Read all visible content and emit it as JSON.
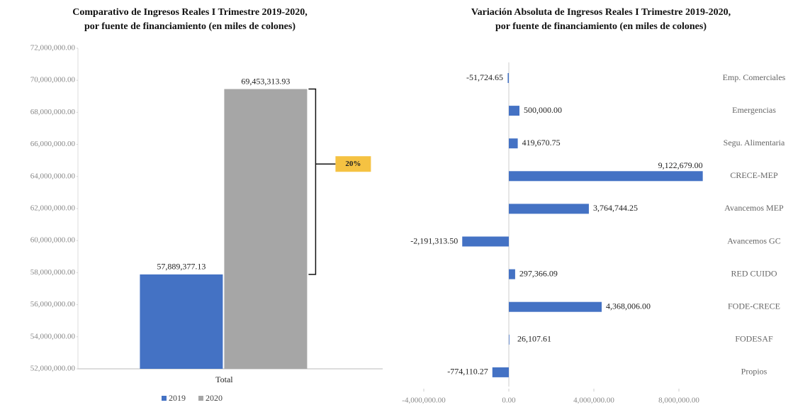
{
  "chart_data": [
    {
      "type": "bar",
      "title": [
        "Comparativo de Ingresos Reales I Trimestre 2019-2020,",
        "por fuente de financiamiento (en miles de  colones)"
      ],
      "categories": [
        "Total"
      ],
      "series": [
        {
          "name": "2019",
          "color": "#4472c4",
          "values": [
            57889377.13
          ],
          "value_labels": [
            "57,889,377.13"
          ]
        },
        {
          "name": "2020",
          "color": "#a6a6a6",
          "values": [
            69453313.93
          ],
          "value_labels": [
            "69,453,313.93"
          ]
        }
      ],
      "ylim": [
        52000000,
        72000000
      ],
      "yticks": [
        {
          "value": 52000000,
          "label": "52,000,000.00"
        },
        {
          "value": 54000000,
          "label": "54,000,000.00"
        },
        {
          "value": 56000000,
          "label": "56,000,000.00"
        },
        {
          "value": 58000000,
          "label": "58,000,000.00"
        },
        {
          "value": 60000000,
          "label": "60,000,000.00"
        },
        {
          "value": 62000000,
          "label": "62,000,000.00"
        },
        {
          "value": 64000000,
          "label": "64,000,000.00"
        },
        {
          "value": 66000000,
          "label": "66,000,000.00"
        },
        {
          "value": 68000000,
          "label": "68,000,000.00"
        },
        {
          "value": 70000000,
          "label": "70,000,000.00"
        },
        {
          "value": 72000000,
          "label": "72,000,000.00"
        }
      ],
      "annotation": "20%",
      "legend": "bottom"
    },
    {
      "type": "hbar",
      "title": [
        "Variación Absoluta de Ingresos Reales I Trimestre 2019-2020,",
        "por fuente de financiamiento (en miles de colones)"
      ],
      "categories": [
        "Emp. Comerciales",
        "Emergencias",
        "Segu. Alimentaria",
        "CRECE-MEP",
        "Avancemos MEP",
        "Avancemos GC",
        "RED CUIDO",
        "FODE-CRECE",
        "FODESAF",
        "Propios"
      ],
      "values": [
        -51724.65,
        500000,
        419670.75,
        9122679,
        3764744.25,
        -2191313.5,
        297366.09,
        4368006,
        26107.61,
        -774110.27
      ],
      "value_labels": [
        "-51,724.65",
        "500,000.00",
        "419,670.75",
        "9,122,679.00",
        "3,764,744.25",
        "-2,191,313.50",
        "297,366.09",
        "4,368,006.00",
        "26,107.61",
        "-774,110.27"
      ],
      "color": "#4472c4",
      "xlim": [
        -4000000,
        10000000
      ],
      "xticks": [
        {
          "value": -4000000,
          "label": "-4,000,000.00"
        },
        {
          "value": 0,
          "label": "0.00"
        },
        {
          "value": 4000000,
          "label": "4,000,000.00"
        },
        {
          "value": 8000000,
          "label": "8,000,000.00"
        }
      ]
    }
  ]
}
